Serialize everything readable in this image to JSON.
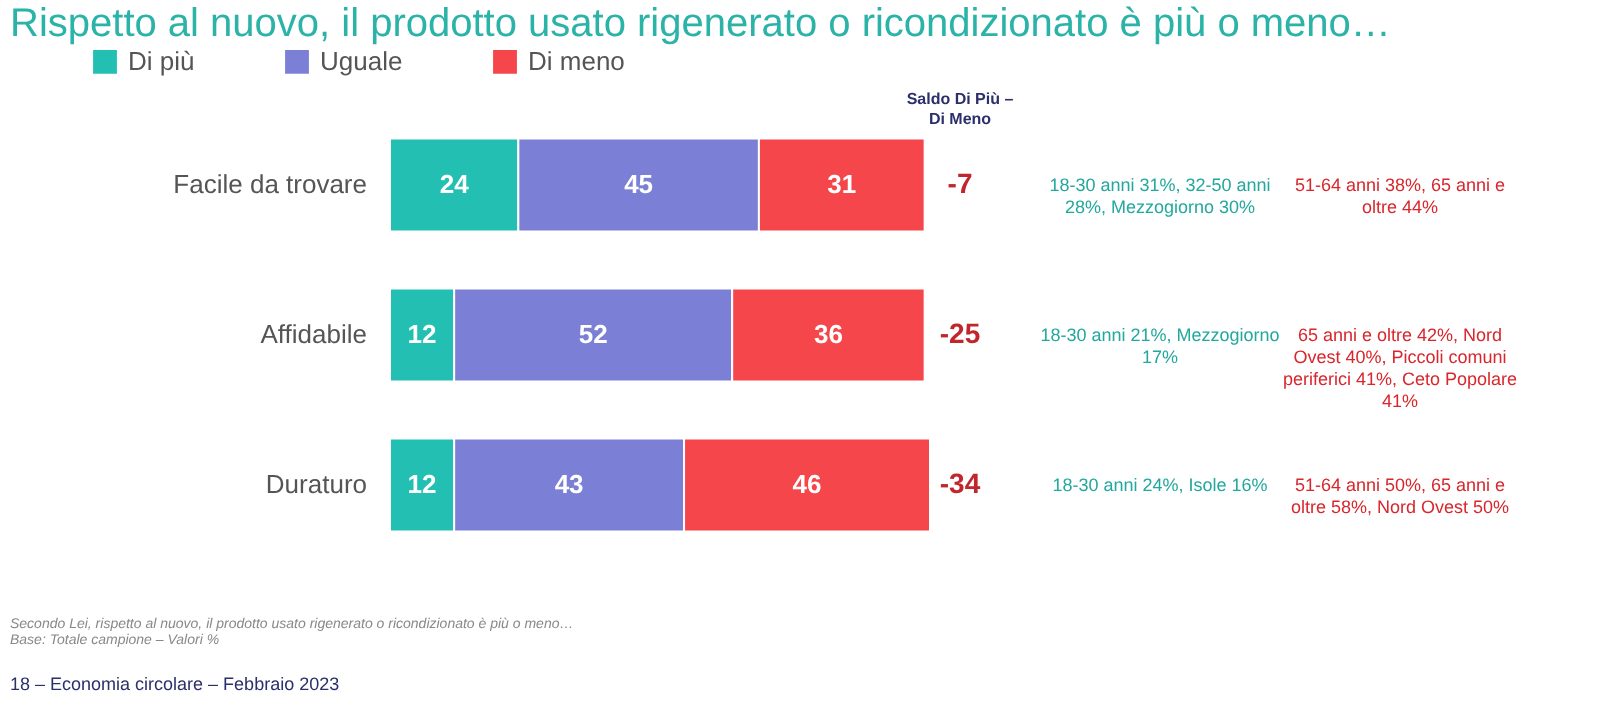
{
  "chart_data": {
    "type": "bar",
    "orientation": "horizontal",
    "stacked": true,
    "data_labels": true,
    "legend": "top left",
    "title": "Rispetto al nuovo, il prodotto usato rigenerato o ricondizionato è più o meno…",
    "categories": [
      "Facile da trovare",
      "Affidabile",
      "Duraturo"
    ],
    "series": [
      {
        "name": "Di più",
        "color": "#22bfb2",
        "values": [
          24,
          12,
          12
        ]
      },
      {
        "name": "Uguale",
        "color": "#7b80d6",
        "values": [
          45,
          52,
          43
        ]
      },
      {
        "name": "Di meno",
        "color": "#f5464b",
        "values": [
          31,
          36,
          46
        ]
      }
    ],
    "annotations": [
      "Saldo Di Più – Di Meno",
      "-7",
      "18-30 anni 31%, 32-50 anni 28%, Mezzogiorno 30%",
      "51-64 anni 38%, 65 anni e oltre 44%",
      "-25",
      "18-30 anni 21%, Mezzogiorno 17%",
      "65 anni e oltre 42%, Nord Ovest 40%, Piccoli comuni periferici 41%, Ceto Popolare 41%",
      "-34",
      "18-30 anni 24%, Isole 16%",
      "51-64 anni 50%, 65 anni e oltre 58%, Nord Ovest 50%",
      "Secondo Lei, rispetto al nuovo, il prodotto usato rigenerato o ricondizionato è più o meno…",
      "Base: Totale campione – Valori %",
      "18 – Economia circolare – Febbraio 2023"
    ]
  }
}
